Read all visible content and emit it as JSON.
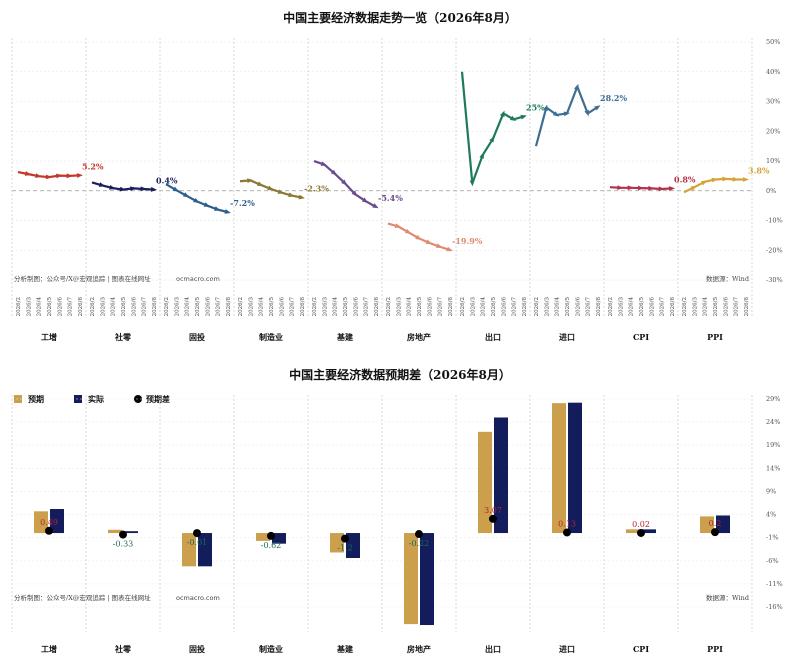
{
  "chart_data": [
    {
      "type": "line",
      "title": "中国主要经济数据走势一览（2026年8月）",
      "ylim": [
        -32,
        50
      ],
      "y_tick_labels": [
        "50%",
        "40%",
        "30%",
        "20%",
        "10%",
        "0%",
        "-10%",
        "-20%",
        "-30%"
      ],
      "y_tick_values": [
        50,
        40,
        30,
        20,
        10,
        0,
        -10,
        -20,
        -30
      ],
      "dates": [
        "2026/2",
        "2026/3",
        "2026/4",
        "2026/5",
        "2026/6",
        "2026/7",
        "2026/8"
      ],
      "source_left": "分析制图：公众号/X@宏观追踪 | 图表在线网址 ",
      "source_left_url": "ocmacro.com",
      "source_right": "数据源：Wind",
      "grid": true,
      "series": [
        {
          "name": "工增",
          "color": "#c0392b",
          "values": [
            6.3,
            5.6,
            4.9,
            4.6,
            5.1,
            5.0,
            5.2
          ],
          "end_label": "5.2%"
        },
        {
          "name": "社零",
          "color": "#1a1f5e",
          "values": [
            2.8,
            1.8,
            0.9,
            0.4,
            0.8,
            0.6,
            0.4
          ],
          "end_label": "0.4%"
        },
        {
          "name": "固投",
          "color": "#2d5f8a",
          "values": [
            2.2,
            0.2,
            -1.7,
            -3.6,
            -5.0,
            -6.3,
            -7.2
          ],
          "end_label": "-7.2%"
        },
        {
          "name": "制造业",
          "color": "#8b7a35",
          "values": [
            3.2,
            3.5,
            2.0,
            0.6,
            -0.6,
            -1.6,
            -2.3
          ],
          "end_label": "-2.3%"
        },
        {
          "name": "基建",
          "color": "#6a4c8c",
          "values": [
            10.0,
            8.8,
            5.8,
            2.5,
            -1.2,
            -3.5,
            -5.4
          ],
          "end_label": "-5.4%"
        },
        {
          "name": "房地产",
          "color": "#e08a6f",
          "values": [
            -11.0,
            -12.0,
            -14.0,
            -16.0,
            -17.5,
            -18.8,
            -19.9
          ],
          "end_label": "-19.9%"
        },
        {
          "name": "出口",
          "color": "#1e7a5a",
          "values": [
            40.0,
            2.5,
            12.0,
            17.5,
            26.0,
            24.0,
            25.0
          ],
          "end_label": "25%"
        },
        {
          "name": "进口",
          "color": "#3e6e94",
          "values": [
            15.0,
            28.0,
            25.5,
            26.0,
            35.0,
            26.0,
            28.2
          ],
          "end_label": "28.2%"
        },
        {
          "name": "CPI",
          "color": "#b0324a",
          "values": [
            1.2,
            1.0,
            1.0,
            0.9,
            0.8,
            0.6,
            0.8
          ],
          "end_label": "0.8%"
        },
        {
          "name": "PPI",
          "color": "#d4a43a",
          "values": [
            -0.5,
            1.2,
            3.0,
            3.8,
            4.0,
            3.8,
            3.8
          ],
          "end_label": "3.8%"
        }
      ]
    },
    {
      "type": "bar",
      "title": "中国主要经济数据预期差（2026年8月）",
      "ylim": [
        -16,
        29
      ],
      "y_tick_labels": [
        "29%",
        "24%",
        "19%",
        "14%",
        "9%",
        "4%",
        "-1%",
        "-6%",
        "-11%",
        "-16%"
      ],
      "y_tick_values": [
        29,
        24,
        19,
        14,
        9,
        4,
        -1,
        -6,
        -11,
        -16
      ],
      "legend": {
        "expected": "预期",
        "actual": "实际",
        "diff": "预期差"
      },
      "colors": {
        "expected": "#cc9f4d",
        "actual": "#131d5c",
        "diff": "#000000"
      },
      "source_left": "分析制图：公众号/X@宏观追踪 | 图表在线网址 ",
      "source_left_url": "ocmacro.com",
      "source_right": "数据源：Wind",
      "categories": [
        "工增",
        "社零",
        "固投",
        "制造业",
        "基建",
        "房地产",
        "出口",
        "进口",
        "CPI",
        "PPI"
      ],
      "expected": [
        4.7,
        0.7,
        -7.2,
        -1.7,
        -4.2,
        -19.7,
        21.9,
        28.1,
        0.8,
        3.6
      ],
      "actual": [
        5.2,
        0.4,
        -7.2,
        -2.3,
        -5.4,
        -19.9,
        25.0,
        28.2,
        0.8,
        3.8
      ],
      "diff": [
        0.49,
        -0.33,
        -0.01,
        -0.62,
        -1.2,
        -0.22,
        3.07,
        0.13,
        0.02,
        0.2
      ],
      "diff_labels": [
        "0.49",
        "-0.33",
        "-0.01",
        "-0.62",
        "-1.2",
        "-0.22",
        "3.07",
        "0.13",
        "0.02",
        "0.2"
      ]
    }
  ]
}
